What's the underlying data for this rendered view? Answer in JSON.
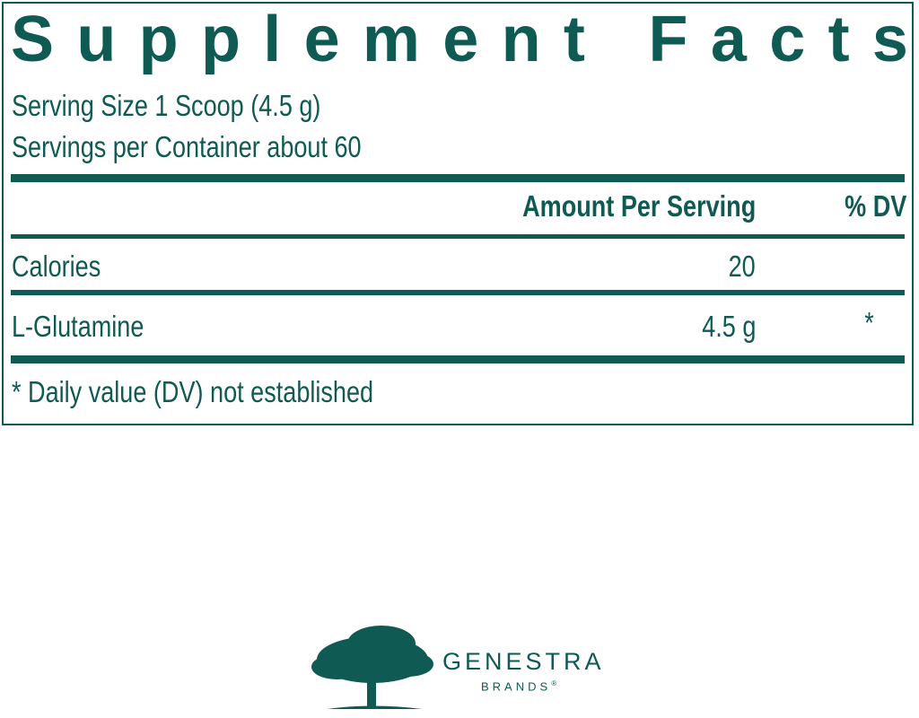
{
  "title": "Supplement Facts",
  "serving_size": "Serving Size 1 Scoop (4.5 g)",
  "servings_per_container": "Servings per Container about 60",
  "header": {
    "amount": "Amount Per Serving",
    "dv": "% DV"
  },
  "rows": [
    {
      "name": "Calories",
      "amount": "20",
      "dv": ""
    },
    {
      "name": "L-Glutamine",
      "amount": "4.5 g",
      "dv": "*"
    }
  ],
  "footnote": "* Daily value (DV) not established",
  "logo": {
    "name": "GENESTRA",
    "sub": "BRANDS",
    "mark": "®"
  },
  "colors": {
    "primary": "#0f5a52"
  }
}
